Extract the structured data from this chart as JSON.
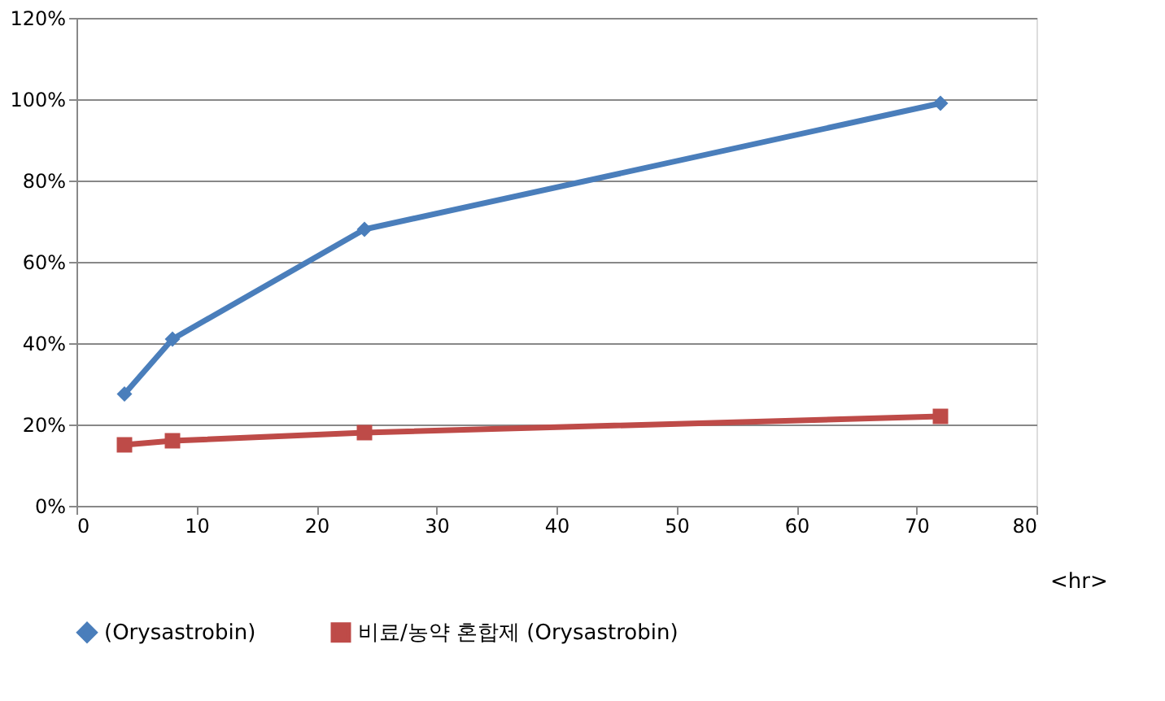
{
  "chart_data": {
    "type": "line",
    "xlabel": "<hr>",
    "x": [
      4,
      8,
      24,
      72
    ],
    "series": [
      {
        "name": "(Orysastrobin)",
        "color": "#4a7ebb",
        "marker": "diamond",
        "values": [
          27.5,
          41,
          68,
          99
        ]
      },
      {
        "name": "비료/농약 혼합제 (Orysastrobin)",
        "color": "#be4b48",
        "marker": "square",
        "values": [
          15,
          16,
          18,
          22
        ]
      }
    ],
    "xlim": [
      0,
      80
    ],
    "xticks": [
      0,
      10,
      20,
      30,
      40,
      50,
      60,
      70,
      80
    ],
    "ylim": [
      0,
      120
    ],
    "yticks": [
      {
        "value": 0,
        "label": "0%"
      },
      {
        "value": 20,
        "label": "20%"
      },
      {
        "value": 40,
        "label": "40%"
      },
      {
        "value": 60,
        "label": "60%"
      },
      {
        "value": 80,
        "label": "80%"
      },
      {
        "value": 100,
        "label": "100%"
      },
      {
        "value": 120,
        "label": "120%"
      }
    ],
    "grid": "y",
    "legend": "bottom",
    "line_style": "solid"
  }
}
